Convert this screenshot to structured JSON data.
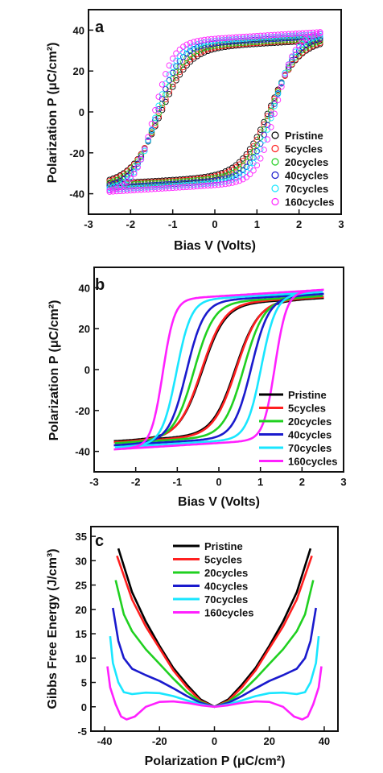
{
  "colors": {
    "series": [
      "#000000",
      "#ff2020",
      "#20d020",
      "#1a1acd",
      "#19e6ff",
      "#ff20ff"
    ],
    "axis": "#111111"
  },
  "chart_data": [
    {
      "panel": "a",
      "type": "scatter",
      "xlabel": "Bias V (Volts)",
      "ylabel": "Polarization P (μC/cm²)",
      "xlim": [
        -3,
        3
      ],
      "ylim": [
        -50,
        50
      ],
      "xticks": [
        "-3",
        "-2",
        "-1",
        "0",
        "1",
        "2",
        "3"
      ],
      "yticks": [
        "-40",
        "-20",
        "0",
        "20",
        "40"
      ],
      "legend_position": "bottom-right",
      "legend_entries": [
        "Pristine",
        "5cycles",
        "20cycles",
        "40cycles",
        "70cycles",
        "160cycles"
      ],
      "marker": "open-circle",
      "series": [
        {
          "name": "Pristine",
          "Pmax": 35,
          "Vc": 1.3,
          "width": 0.68
        },
        {
          "name": "5cycles",
          "Pmax": 35.5,
          "Vc": 1.32,
          "width": 0.66
        },
        {
          "name": "20cycles",
          "Pmax": 36,
          "Vc": 1.35,
          "width": 0.6
        },
        {
          "name": "40cycles",
          "Pmax": 37,
          "Vc": 1.38,
          "width": 0.55
        },
        {
          "name": "70cycles",
          "Pmax": 38,
          "Vc": 1.4,
          "width": 0.5
        },
        {
          "name": "160cycles",
          "Pmax": 39,
          "Vc": 1.45,
          "width": 0.45
        }
      ]
    },
    {
      "panel": "b",
      "type": "line",
      "xlabel": "Bias V (Volts)",
      "ylabel": "Polarization P (μC/cm²)",
      "xlim": [
        -3,
        3
      ],
      "ylim": [
        -50,
        50
      ],
      "xticks": [
        "-3",
        "-2",
        "-1",
        "0",
        "1",
        "2",
        "3"
      ],
      "yticks": [
        "-40",
        "-20",
        "0",
        "20",
        "40"
      ],
      "legend_position": "bottom-right",
      "legend_entries": [
        "Pristine",
        "5cycles",
        "20cycles",
        "40cycles",
        "70cycles",
        "160cycles"
      ],
      "series": [
        {
          "name": "Pristine",
          "Pmax": 35,
          "Vc": 0.4,
          "width": 0.55
        },
        {
          "name": "5cycles",
          "Pmax": 35.5,
          "Vc": 0.42,
          "width": 0.55
        },
        {
          "name": "20cycles",
          "Pmax": 36,
          "Vc": 0.6,
          "width": 0.48
        },
        {
          "name": "40cycles",
          "Pmax": 37,
          "Vc": 0.78,
          "width": 0.42
        },
        {
          "name": "70cycles",
          "Pmax": 38,
          "Vc": 1.02,
          "width": 0.35
        },
        {
          "name": "160cycles",
          "Pmax": 39,
          "Vc": 1.35,
          "width": 0.28
        }
      ]
    },
    {
      "panel": "c",
      "type": "line",
      "xlabel": "Polarization P (μC/cm²)",
      "ylabel": "Gibbs Free Energy (J/cm³)",
      "xlim": [
        -45,
        45
      ],
      "ylim": [
        -5,
        37
      ],
      "xticks": [
        "-40",
        "-20",
        "0",
        "20",
        "40"
      ],
      "yticks": [
        "-5",
        "0",
        "5",
        "10",
        "15",
        "20",
        "25",
        "30",
        "35"
      ],
      "legend_position": "top-center",
      "legend_entries": [
        "Pristine",
        "5cycles",
        "20cycles",
        "40cycles",
        "70cycles",
        "160cycles"
      ],
      "series": [
        {
          "name": "Pristine",
          "x_end": 35,
          "G_end": 32.5,
          "points": [
            [
              0,
              0
            ],
            [
              5,
              1.5
            ],
            [
              10,
              4.5
            ],
            [
              15,
              8
            ],
            [
              20,
              12.5
            ],
            [
              25,
              17.5
            ],
            [
              30,
              23.5
            ],
            [
              35,
              32.5
            ]
          ]
        },
        {
          "name": "5cycles",
          "x_end": 35.5,
          "G_end": 31,
          "points": [
            [
              0,
              0
            ],
            [
              5,
              1.2
            ],
            [
              10,
              4
            ],
            [
              15,
              7.5
            ],
            [
              20,
              12
            ],
            [
              25,
              16.5
            ],
            [
              30,
              22
            ],
            [
              35.5,
              31
            ]
          ]
        },
        {
          "name": "20cycles",
          "x_end": 36,
          "G_end": 26,
          "points": [
            [
              0,
              0
            ],
            [
              5,
              1
            ],
            [
              10,
              3
            ],
            [
              15,
              5.8
            ],
            [
              20,
              8.8
            ],
            [
              25,
              11.8
            ],
            [
              30,
              15.5
            ],
            [
              33,
              19
            ],
            [
              36,
              26
            ]
          ]
        },
        {
          "name": "40cycles",
          "x_end": 37,
          "G_end": 20.3,
          "points": [
            [
              0,
              0
            ],
            [
              5,
              0.8
            ],
            [
              10,
              2.2
            ],
            [
              15,
              3.8
            ],
            [
              20,
              5.3
            ],
            [
              25,
              6.5
            ],
            [
              30,
              7.8
            ],
            [
              33,
              10
            ],
            [
              35,
              13.5
            ],
            [
              37,
              20.3
            ]
          ]
        },
        {
          "name": "70cycles",
          "x_end": 38,
          "G_end": 14.5,
          "points": [
            [
              0,
              0
            ],
            [
              5,
              0.5
            ],
            [
              10,
              1.3
            ],
            [
              15,
              2.2
            ],
            [
              20,
              2.8
            ],
            [
              25,
              2.9
            ],
            [
              30,
              2.6
            ],
            [
              33,
              3
            ],
            [
              35,
              5
            ],
            [
              37,
              9
            ],
            [
              38,
              14.5
            ]
          ]
        },
        {
          "name": "160cycles",
          "x_end": 39,
          "G_end": 8.3,
          "points": [
            [
              0,
              0
            ],
            [
              5,
              0.3
            ],
            [
              10,
              0.8
            ],
            [
              15,
              1.1
            ],
            [
              20,
              1
            ],
            [
              25,
              0
            ],
            [
              29,
              -2
            ],
            [
              32,
              -2.6
            ],
            [
              34,
              -2
            ],
            [
              36,
              0.5
            ],
            [
              38,
              4
            ],
            [
              39,
              8.3
            ]
          ]
        }
      ]
    }
  ]
}
